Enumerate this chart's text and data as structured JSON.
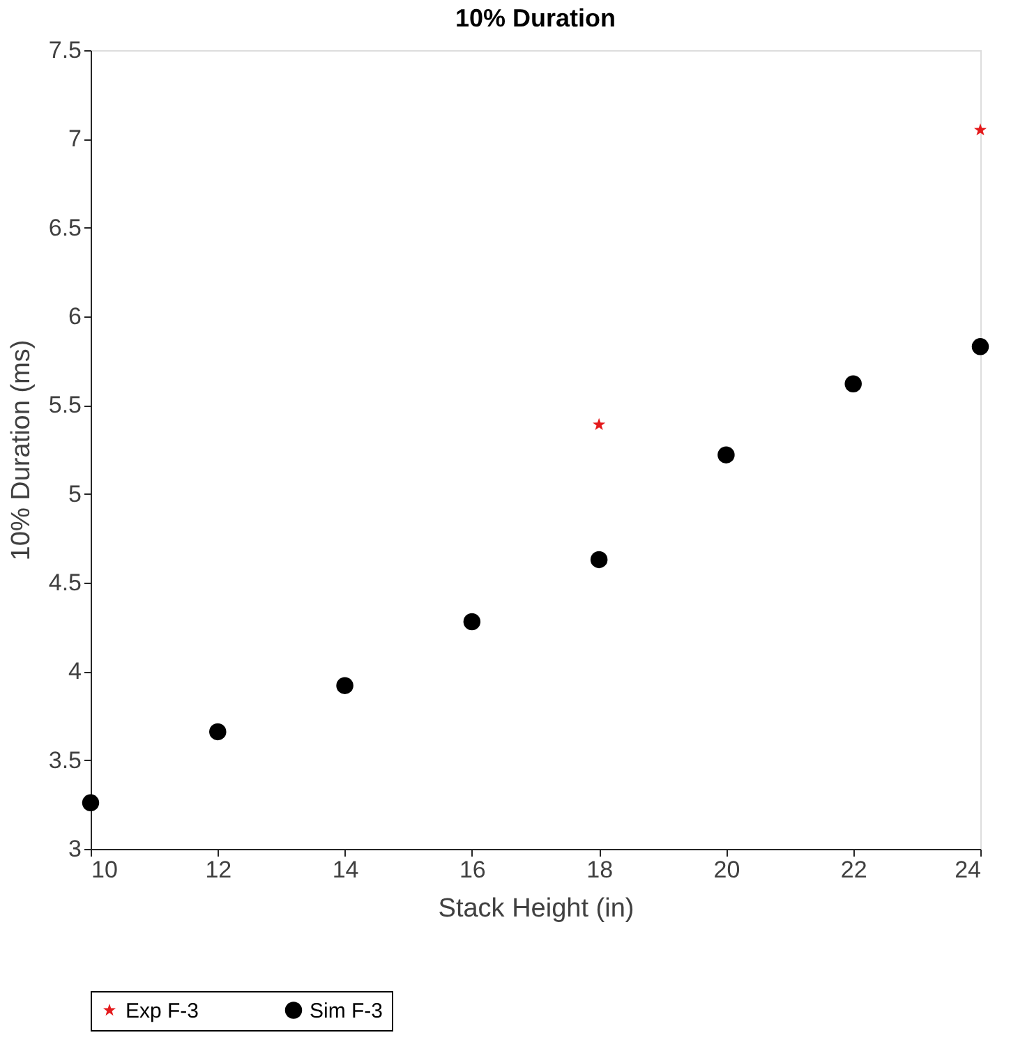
{
  "chart_data": {
    "type": "scatter",
    "title": "10% Duration",
    "xlabel": "Stack Height (in)",
    "ylabel": "10% Duration (ms)",
    "xlim": [
      10,
      24
    ],
    "xticks": [
      10,
      12,
      14,
      16,
      18,
      20,
      22,
      24
    ],
    "ylim": [
      3,
      7.5
    ],
    "yticks": [
      3,
      3.5,
      4,
      4.5,
      5,
      5.5,
      6,
      6.5,
      7,
      7.5
    ],
    "grid": false,
    "legend": "bottom",
    "series": [
      {
        "name": "Exp F-3",
        "color": "#e41a1c",
        "marker": "star",
        "x": [
          18,
          24
        ],
        "values": [
          5.39,
          7.05
        ]
      },
      {
        "name": "Sim F-3",
        "color": "#000000",
        "marker": "circle",
        "x": [
          10,
          12,
          14,
          16,
          18,
          20,
          22,
          24
        ],
        "values": [
          3.26,
          3.66,
          3.92,
          4.28,
          4.63,
          5.22,
          5.62,
          5.83
        ]
      }
    ]
  }
}
